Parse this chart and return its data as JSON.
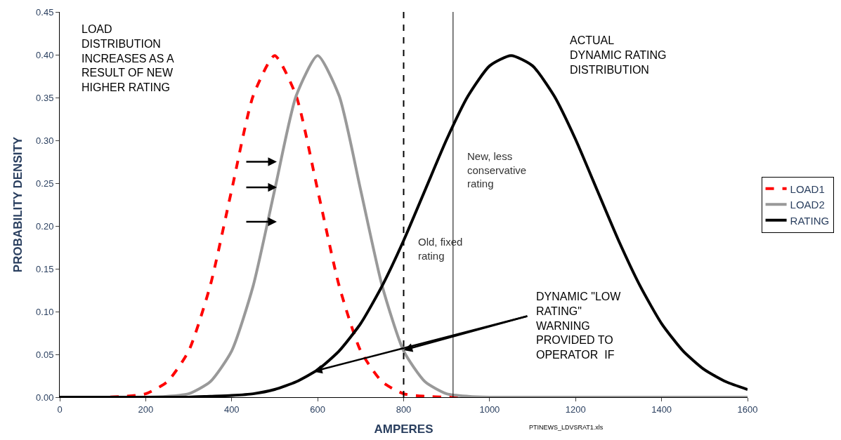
{
  "chart_data": {
    "type": "line",
    "xlabel": "AMPERES",
    "ylabel": "PROBABILITY DENSITY",
    "xlim": [
      0,
      1600
    ],
    "xticks": [
      0,
      200,
      400,
      600,
      800,
      1000,
      1200,
      1400,
      1600
    ],
    "ylim": [
      0,
      0.45
    ],
    "yticks": [
      {
        "value": 0,
        "label": "0.00"
      },
      {
        "value": 0.05,
        "label": "0.05"
      },
      {
        "value": 0.1,
        "label": "0.10"
      },
      {
        "value": 0.15,
        "label": "0.15"
      },
      {
        "value": 0.2,
        "label": "0.20"
      },
      {
        "value": 0.25,
        "label": "0.25"
      },
      {
        "value": 0.3,
        "label": "0.30"
      },
      {
        "value": 0.35,
        "label": "0.35"
      },
      {
        "value": 0.4,
        "label": "0.40"
      },
      {
        "value": 0.45,
        "label": "0.45"
      }
    ],
    "legend": "right",
    "marker": "none",
    "x": [
      0,
      50,
      100,
      150,
      200,
      250,
      300,
      350,
      400,
      450,
      500,
      550,
      600,
      650,
      700,
      750,
      800,
      850,
      900,
      950,
      1000,
      1050,
      1100,
      1150,
      1200,
      1250,
      1300,
      1350,
      1400,
      1450,
      1500,
      1550,
      1600
    ],
    "series": [
      {
        "name": "LOAD1",
        "color": "#ff0000",
        "line_style": "dashed",
        "x": [
          0,
          50,
          100,
          150,
          200,
          250,
          300,
          350,
          400,
          450,
          500,
          550,
          600,
          650,
          700,
          750,
          800,
          850,
          900,
          950,
          1000
        ],
        "values": [
          0,
          0,
          0,
          0.001,
          0.004,
          0.018,
          0.054,
          0.13,
          0.242,
          0.352,
          0.399,
          0.352,
          0.242,
          0.13,
          0.054,
          0.018,
          0.004,
          0.001,
          0,
          0,
          0
        ]
      },
      {
        "name": "LOAD2",
        "color": "#999999",
        "line_style": "solid",
        "values": [
          0,
          0,
          0,
          0,
          0,
          0.001,
          0.004,
          0.018,
          0.054,
          0.13,
          0.242,
          0.352,
          0.399,
          0.352,
          0.242,
          0.13,
          0.054,
          0.018,
          0.004,
          0.001,
          0,
          0,
          0,
          0,
          0,
          0,
          0,
          0,
          0,
          0,
          0,
          0,
          0
        ]
      },
      {
        "name": "RATING",
        "color": "#000000",
        "line_style": "solid",
        "values": [
          0,
          0,
          0,
          0,
          0,
          0,
          0,
          0.001,
          0.002,
          0.004,
          0.009,
          0.018,
          0.032,
          0.054,
          0.086,
          0.13,
          0.183,
          0.242,
          0.301,
          0.352,
          0.387,
          0.399,
          0.387,
          0.352,
          0.301,
          0.242,
          0.183,
          0.13,
          0.086,
          0.054,
          0.032,
          0.018,
          0.009
        ]
      }
    ],
    "ref_lines": [
      {
        "axis": "x",
        "value": 800,
        "label": "Old, fixed\nrating",
        "color": "#000000",
        "line_style": "dashed"
      },
      {
        "axis": "x",
        "value": 915,
        "label": "New, less\nconservative\nrating",
        "color": "#000000",
        "line_style": "solid"
      }
    ],
    "annotations": [
      "LOAD\nDISTRIBUTION\nINCREASES AS A\nRESULT OF NEW\nHIGHER RATING",
      "ACTUAL\nDYNAMIC RATING\nDISTRIBUTION",
      {
        "text": "DYNAMIC \"LOW\nRATING\"\nWARNING\nPROVIDED TO\nOPERATOR  IF",
        "x": 800,
        "y": 0.055
      },
      "PTINEWS_LDVSRAT1.xls"
    ]
  }
}
